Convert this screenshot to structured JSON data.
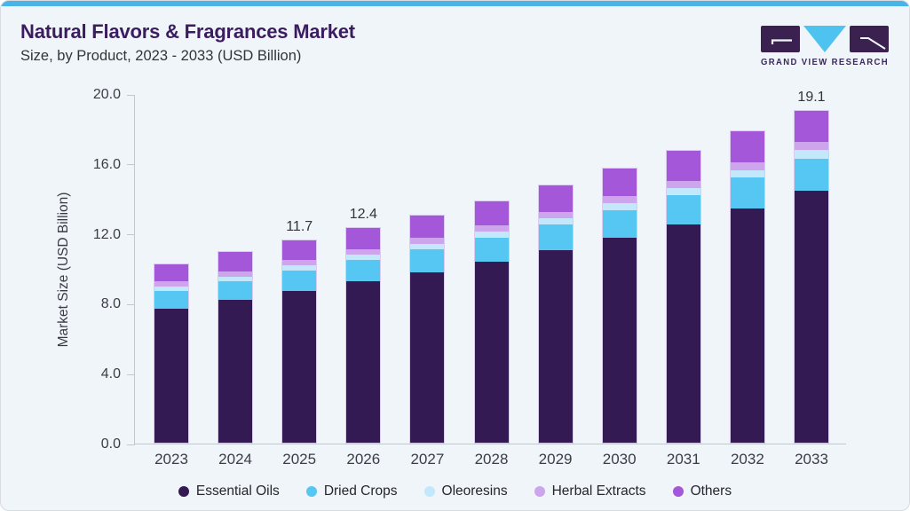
{
  "header": {
    "title": "Natural Flavors & Fragrances Market",
    "subtitle": "Size, by Product, 2023 - 2033 (USD Billion)"
  },
  "logo": {
    "brand": "GRAND VIEW RESEARCH"
  },
  "colors": {
    "accent_stripe": "#49b5e7",
    "title_text": "#3b1d5f",
    "card_background": "#f0f5fa",
    "axis_line": "#c3c8d0",
    "tick_text": "#3c3c46",
    "logo_purple": "#3b2150",
    "logo_cyan": "#4fc3f0"
  },
  "chart_data": {
    "type": "bar",
    "stacked": true,
    "title": "Natural Flavors & Fragrances Market Size, by Product, 2023 - 2033 (USD Billion)",
    "xlabel": "",
    "ylabel": "Market Size (USD Billion)",
    "ylim": [
      0,
      20
    ],
    "yticks": [
      "0.0",
      "4.0",
      "8.0",
      "12.0",
      "16.0",
      "20.0"
    ],
    "grid": false,
    "legend_position": "bottom",
    "categories": [
      "2023",
      "2024",
      "2025",
      "2026",
      "2027",
      "2028",
      "2029",
      "2030",
      "2031",
      "2032",
      "2033"
    ],
    "series": [
      {
        "name": "Essential Oils",
        "color": "#341a52",
        "values": [
          7.65,
          8.15,
          8.7,
          9.22,
          9.75,
          10.35,
          11.0,
          11.75,
          12.5,
          13.4,
          14.4
        ]
      },
      {
        "name": "Dried Crops",
        "color": "#56c7f2",
        "values": [
          1.05,
          1.1,
          1.16,
          1.23,
          1.3,
          1.38,
          1.47,
          1.56,
          1.66,
          1.76,
          1.87
        ]
      },
      {
        "name": "Oleoresins",
        "color": "#c3e7fb",
        "values": [
          0.25,
          0.26,
          0.28,
          0.3,
          0.32,
          0.34,
          0.36,
          0.38,
          0.4,
          0.43,
          0.46
        ]
      },
      {
        "name": "Herbal Extracts",
        "color": "#cda5ec",
        "values": [
          0.3,
          0.31,
          0.32,
          0.33,
          0.34,
          0.36,
          0.38,
          0.4,
          0.42,
          0.44,
          0.46
        ]
      },
      {
        "name": "Others",
        "color": "#a457d8",
        "values": [
          1.05,
          1.18,
          1.24,
          1.32,
          1.39,
          1.47,
          1.59,
          1.71,
          1.82,
          1.87,
          1.91
        ]
      }
    ],
    "totals": [
      10.3,
      11.0,
      11.7,
      12.4,
      13.1,
      13.9,
      14.8,
      15.8,
      16.8,
      17.9,
      19.1
    ],
    "bar_labels": [
      "",
      "",
      "11.7",
      "12.4",
      "",
      "",
      "",
      "",
      "",
      "",
      "19.1"
    ]
  }
}
